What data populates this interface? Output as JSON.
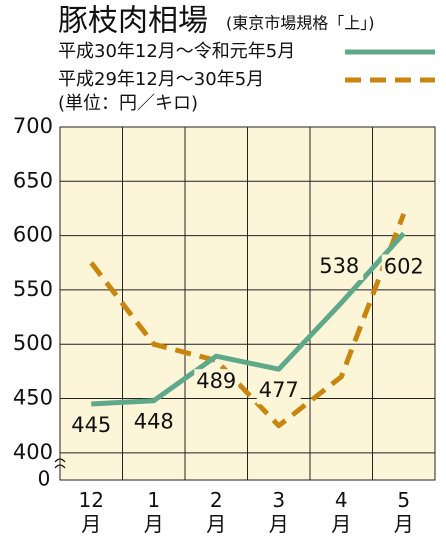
{
  "chart_data": {
    "type": "line",
    "title": "豚枝肉相場",
    "subtitle": "(東京市場規格「上」)",
    "unit_label": "(単位：円／キロ)",
    "axis_break_label": "0",
    "categories": [
      "12月",
      "1月",
      "2月",
      "3月",
      "4月",
      "5月"
    ],
    "series": [
      {
        "name": "平成30年12月～令和元年5月",
        "color": "#5fa88a",
        "dash": false,
        "values": [
          445,
          448,
          489,
          477,
          538,
          602
        ]
      },
      {
        "name": "平成29年12月～30年5月",
        "color": "#c8860f",
        "dash": true,
        "values": [
          575,
          500,
          485,
          425,
          470,
          620
        ]
      }
    ],
    "data_labels_series": 0,
    "ylim": [
      375,
      700
    ],
    "yticks": [
      400,
      450,
      500,
      550,
      600,
      650,
      700
    ],
    "grid": true
  }
}
